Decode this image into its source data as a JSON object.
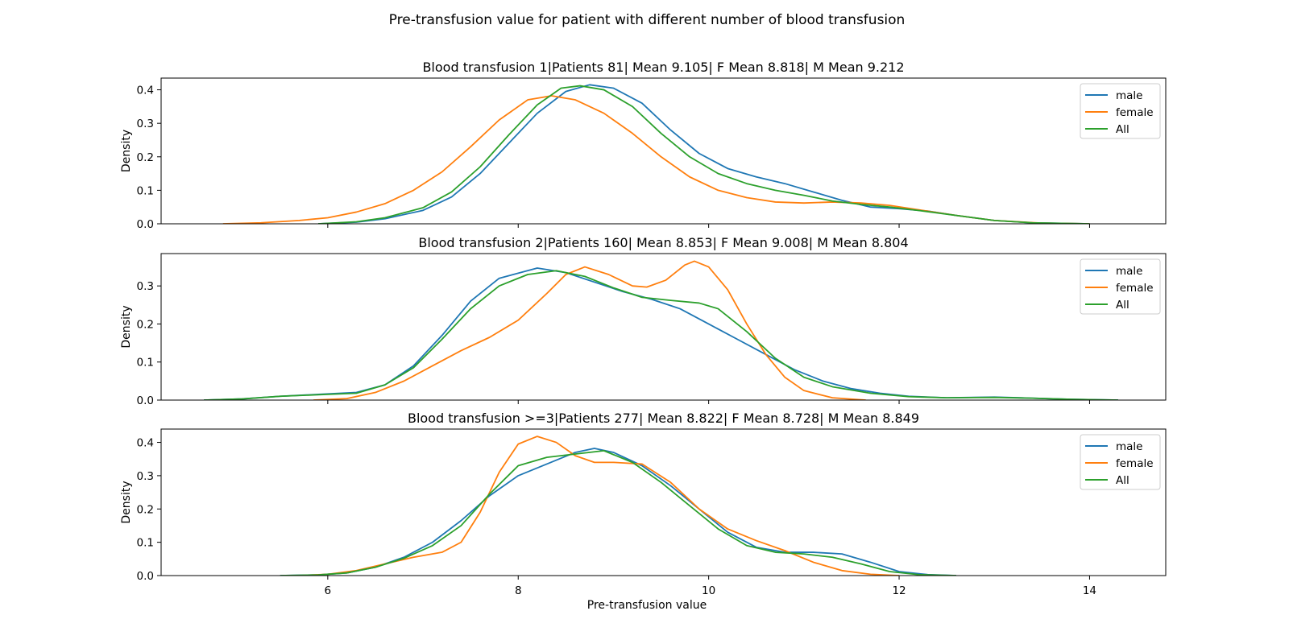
{
  "figure": {
    "suptitle": "Pre-transfusion value for patient with different number of blood transfusion",
    "xlabel": "Pre-transfusion value"
  },
  "colors": {
    "male": "#1f77b4",
    "female": "#ff7f0e",
    "All": "#2ca02c"
  },
  "chart_data": [
    {
      "type": "line",
      "title": "Blood transfusion 1|Patients 81| Mean 9.105| F Mean 8.818| M Mean 9.212",
      "xlabel": "",
      "ylabel": "Density",
      "xlim": [
        4.25,
        14.8
      ],
      "ylim": [
        0,
        0.435
      ],
      "xticks": [
        6,
        8,
        10,
        12,
        14
      ],
      "show_xticklabels": false,
      "yticks": [
        0.0,
        0.1,
        0.2,
        0.3,
        0.4
      ],
      "yticklabels": [
        "0.0",
        "0.1",
        "0.2",
        "0.3",
        "0.4"
      ],
      "legend": {
        "position": "upper right",
        "entries": [
          "male",
          "female",
          "All"
        ]
      },
      "series": [
        {
          "name": "male",
          "color": "#1f77b4",
          "points": [
            [
              5.9,
              0
            ],
            [
              6.3,
              0.005
            ],
            [
              6.6,
              0.015
            ],
            [
              7.0,
              0.04
            ],
            [
              7.3,
              0.08
            ],
            [
              7.6,
              0.15
            ],
            [
              7.9,
              0.24
            ],
            [
              8.2,
              0.33
            ],
            [
              8.5,
              0.395
            ],
            [
              8.75,
              0.415
            ],
            [
              9.0,
              0.405
            ],
            [
              9.3,
              0.36
            ],
            [
              9.6,
              0.28
            ],
            [
              9.9,
              0.21
            ],
            [
              10.2,
              0.165
            ],
            [
              10.5,
              0.14
            ],
            [
              10.8,
              0.12
            ],
            [
              11.1,
              0.095
            ],
            [
              11.4,
              0.07
            ],
            [
              11.7,
              0.05
            ],
            [
              12.0,
              0.045
            ],
            [
              12.3,
              0.038
            ],
            [
              12.6,
              0.025
            ],
            [
              13.0,
              0.01
            ],
            [
              13.4,
              0.003
            ],
            [
              14.0,
              0
            ]
          ]
        },
        {
          "name": "female",
          "color": "#ff7f0e",
          "points": [
            [
              4.9,
              0
            ],
            [
              5.3,
              0.003
            ],
            [
              5.7,
              0.01
            ],
            [
              6.0,
              0.018
            ],
            [
              6.3,
              0.035
            ],
            [
              6.6,
              0.06
            ],
            [
              6.9,
              0.1
            ],
            [
              7.2,
              0.155
            ],
            [
              7.5,
              0.23
            ],
            [
              7.8,
              0.31
            ],
            [
              8.1,
              0.37
            ],
            [
              8.35,
              0.382
            ],
            [
              8.6,
              0.37
            ],
            [
              8.9,
              0.33
            ],
            [
              9.2,
              0.27
            ],
            [
              9.5,
              0.2
            ],
            [
              9.8,
              0.14
            ],
            [
              10.1,
              0.1
            ],
            [
              10.4,
              0.078
            ],
            [
              10.7,
              0.065
            ],
            [
              11.0,
              0.062
            ],
            [
              11.3,
              0.065
            ],
            [
              11.6,
              0.062
            ],
            [
              11.9,
              0.055
            ],
            [
              12.2,
              0.042
            ],
            [
              12.6,
              0.025
            ],
            [
              13.0,
              0.01
            ],
            [
              13.5,
              0.002
            ],
            [
              14.0,
              0
            ]
          ]
        },
        {
          "name": "All",
          "color": "#2ca02c",
          "points": [
            [
              5.9,
              0
            ],
            [
              6.3,
              0.006
            ],
            [
              6.6,
              0.018
            ],
            [
              7.0,
              0.048
            ],
            [
              7.3,
              0.095
            ],
            [
              7.6,
              0.17
            ],
            [
              7.9,
              0.265
            ],
            [
              8.2,
              0.355
            ],
            [
              8.45,
              0.405
            ],
            [
              8.65,
              0.412
            ],
            [
              8.9,
              0.4
            ],
            [
              9.2,
              0.35
            ],
            [
              9.5,
              0.27
            ],
            [
              9.8,
              0.2
            ],
            [
              10.1,
              0.15
            ],
            [
              10.4,
              0.12
            ],
            [
              10.7,
              0.1
            ],
            [
              11.0,
              0.085
            ],
            [
              11.3,
              0.068
            ],
            [
              11.6,
              0.058
            ],
            [
              11.9,
              0.05
            ],
            [
              12.2,
              0.04
            ],
            [
              12.6,
              0.025
            ],
            [
              13.0,
              0.01
            ],
            [
              13.4,
              0.003
            ],
            [
              14.0,
              0
            ]
          ]
        }
      ]
    },
    {
      "type": "line",
      "title": "Blood transfusion 2|Patients 160| Mean 8.853| F Mean 9.008| M Mean 8.804",
      "xlabel": "",
      "ylabel": "Density",
      "xlim": [
        4.25,
        14.8
      ],
      "ylim": [
        0,
        0.385
      ],
      "xticks": [
        6,
        8,
        10,
        12,
        14
      ],
      "show_xticklabels": false,
      "yticks": [
        0.0,
        0.1,
        0.2,
        0.3
      ],
      "yticklabels": [
        "0.0",
        "0.1",
        "0.2",
        "0.3"
      ],
      "legend": {
        "position": "upper right",
        "entries": [
          "male",
          "female",
          "All"
        ]
      },
      "series": [
        {
          "name": "male",
          "color": "#1f77b4",
          "points": [
            [
              4.7,
              0
            ],
            [
              5.1,
              0.003
            ],
            [
              5.5,
              0.01
            ],
            [
              5.9,
              0.015
            ],
            [
              6.3,
              0.02
            ],
            [
              6.6,
              0.04
            ],
            [
              6.9,
              0.09
            ],
            [
              7.2,
              0.17
            ],
            [
              7.5,
              0.26
            ],
            [
              7.8,
              0.32
            ],
            [
              8.2,
              0.347
            ],
            [
              8.5,
              0.335
            ],
            [
              8.8,
              0.31
            ],
            [
              9.1,
              0.285
            ],
            [
              9.4,
              0.265
            ],
            [
              9.7,
              0.24
            ],
            [
              10.0,
              0.2
            ],
            [
              10.3,
              0.16
            ],
            [
              10.6,
              0.12
            ],
            [
              10.9,
              0.08
            ],
            [
              11.2,
              0.05
            ],
            [
              11.5,
              0.03
            ],
            [
              11.8,
              0.018
            ],
            [
              12.1,
              0.01
            ],
            [
              12.5,
              0.006
            ],
            [
              13.0,
              0.008
            ],
            [
              13.4,
              0.005
            ],
            [
              13.8,
              0.002
            ],
            [
              14.3,
              0
            ]
          ]
        },
        {
          "name": "female",
          "color": "#ff7f0e",
          "points": [
            [
              5.85,
              0
            ],
            [
              6.2,
              0.004
            ],
            [
              6.5,
              0.02
            ],
            [
              6.8,
              0.05
            ],
            [
              7.1,
              0.09
            ],
            [
              7.4,
              0.13
            ],
            [
              7.7,
              0.165
            ],
            [
              8.0,
              0.21
            ],
            [
              8.3,
              0.28
            ],
            [
              8.5,
              0.33
            ],
            [
              8.7,
              0.35
            ],
            [
              8.95,
              0.33
            ],
            [
              9.2,
              0.3
            ],
            [
              9.35,
              0.297
            ],
            [
              9.55,
              0.315
            ],
            [
              9.75,
              0.355
            ],
            [
              9.85,
              0.365
            ],
            [
              10.0,
              0.35
            ],
            [
              10.2,
              0.29
            ],
            [
              10.4,
              0.2
            ],
            [
              10.6,
              0.12
            ],
            [
              10.8,
              0.06
            ],
            [
              11.0,
              0.025
            ],
            [
              11.3,
              0.006
            ],
            [
              11.65,
              0
            ]
          ]
        },
        {
          "name": "All",
          "color": "#2ca02c",
          "points": [
            [
              4.7,
              0
            ],
            [
              5.1,
              0.003
            ],
            [
              5.5,
              0.01
            ],
            [
              5.9,
              0.014
            ],
            [
              6.3,
              0.018
            ],
            [
              6.6,
              0.04
            ],
            [
              6.9,
              0.085
            ],
            [
              7.2,
              0.16
            ],
            [
              7.5,
              0.24
            ],
            [
              7.8,
              0.3
            ],
            [
              8.1,
              0.33
            ],
            [
              8.4,
              0.34
            ],
            [
              8.7,
              0.325
            ],
            [
              9.0,
              0.295
            ],
            [
              9.3,
              0.27
            ],
            [
              9.6,
              0.262
            ],
            [
              9.9,
              0.255
            ],
            [
              10.1,
              0.24
            ],
            [
              10.4,
              0.18
            ],
            [
              10.7,
              0.11
            ],
            [
              11.0,
              0.06
            ],
            [
              11.3,
              0.035
            ],
            [
              11.7,
              0.018
            ],
            [
              12.1,
              0.009
            ],
            [
              12.5,
              0.006
            ],
            [
              13.0,
              0.007
            ],
            [
              13.4,
              0.005
            ],
            [
              13.8,
              0.002
            ],
            [
              14.3,
              0
            ]
          ]
        }
      ]
    },
    {
      "type": "line",
      "title": "Blood transfusion >=3|Patients 277| Mean 8.822| F Mean 8.728| M Mean 8.849",
      "xlabel": "Pre-transfusion value",
      "ylabel": "Density",
      "xlim": [
        4.25,
        14.8
      ],
      "ylim": [
        0,
        0.44
      ],
      "xticks": [
        6,
        8,
        10,
        12,
        14
      ],
      "xticklabels": [
        "6",
        "8",
        "10",
        "12",
        "14"
      ],
      "show_xticklabels": true,
      "yticks": [
        0.0,
        0.1,
        0.2,
        0.3,
        0.4
      ],
      "yticklabels": [
        "0.0",
        "0.1",
        "0.2",
        "0.3",
        "0.4"
      ],
      "legend": {
        "position": "upper right",
        "entries": [
          "male",
          "female",
          "All"
        ]
      },
      "series": [
        {
          "name": "male",
          "color": "#1f77b4",
          "points": [
            [
              5.5,
              0
            ],
            [
              5.9,
              0.002
            ],
            [
              6.2,
              0.008
            ],
            [
              6.5,
              0.025
            ],
            [
              6.8,
              0.055
            ],
            [
              7.1,
              0.1
            ],
            [
              7.4,
              0.165
            ],
            [
              7.7,
              0.24
            ],
            [
              8.0,
              0.3
            ],
            [
              8.3,
              0.335
            ],
            [
              8.6,
              0.37
            ],
            [
              8.8,
              0.382
            ],
            [
              9.0,
              0.37
            ],
            [
              9.3,
              0.33
            ],
            [
              9.6,
              0.27
            ],
            [
              9.9,
              0.2
            ],
            [
              10.2,
              0.13
            ],
            [
              10.5,
              0.085
            ],
            [
              10.8,
              0.07
            ],
            [
              11.1,
              0.07
            ],
            [
              11.4,
              0.065
            ],
            [
              11.7,
              0.04
            ],
            [
              12.0,
              0.012
            ],
            [
              12.3,
              0.003
            ],
            [
              12.6,
              0
            ]
          ]
        },
        {
          "name": "female",
          "color": "#ff7f0e",
          "points": [
            [
              5.7,
              0
            ],
            [
              6.0,
              0.004
            ],
            [
              6.3,
              0.015
            ],
            [
              6.6,
              0.035
            ],
            [
              6.9,
              0.055
            ],
            [
              7.2,
              0.07
            ],
            [
              7.4,
              0.1
            ],
            [
              7.6,
              0.19
            ],
            [
              7.8,
              0.31
            ],
            [
              8.0,
              0.395
            ],
            [
              8.2,
              0.418
            ],
            [
              8.4,
              0.4
            ],
            [
              8.6,
              0.36
            ],
            [
              8.8,
              0.34
            ],
            [
              9.0,
              0.34
            ],
            [
              9.3,
              0.335
            ],
            [
              9.6,
              0.28
            ],
            [
              9.9,
              0.2
            ],
            [
              10.2,
              0.14
            ],
            [
              10.5,
              0.105
            ],
            [
              10.8,
              0.075
            ],
            [
              11.1,
              0.04
            ],
            [
              11.4,
              0.015
            ],
            [
              11.7,
              0.004
            ],
            [
              12.0,
              0
            ]
          ]
        },
        {
          "name": "All",
          "color": "#2ca02c",
          "points": [
            [
              5.5,
              0
            ],
            [
              5.9,
              0.002
            ],
            [
              6.2,
              0.008
            ],
            [
              6.5,
              0.025
            ],
            [
              6.8,
              0.052
            ],
            [
              7.1,
              0.09
            ],
            [
              7.4,
              0.15
            ],
            [
              7.7,
              0.245
            ],
            [
              8.0,
              0.33
            ],
            [
              8.3,
              0.355
            ],
            [
              8.6,
              0.365
            ],
            [
              8.9,
              0.375
            ],
            [
              9.2,
              0.34
            ],
            [
              9.5,
              0.28
            ],
            [
              9.8,
              0.21
            ],
            [
              10.1,
              0.14
            ],
            [
              10.4,
              0.09
            ],
            [
              10.7,
              0.07
            ],
            [
              11.0,
              0.065
            ],
            [
              11.3,
              0.055
            ],
            [
              11.6,
              0.035
            ],
            [
              11.9,
              0.012
            ],
            [
              12.2,
              0.003
            ],
            [
              12.6,
              0
            ]
          ]
        }
      ]
    }
  ]
}
